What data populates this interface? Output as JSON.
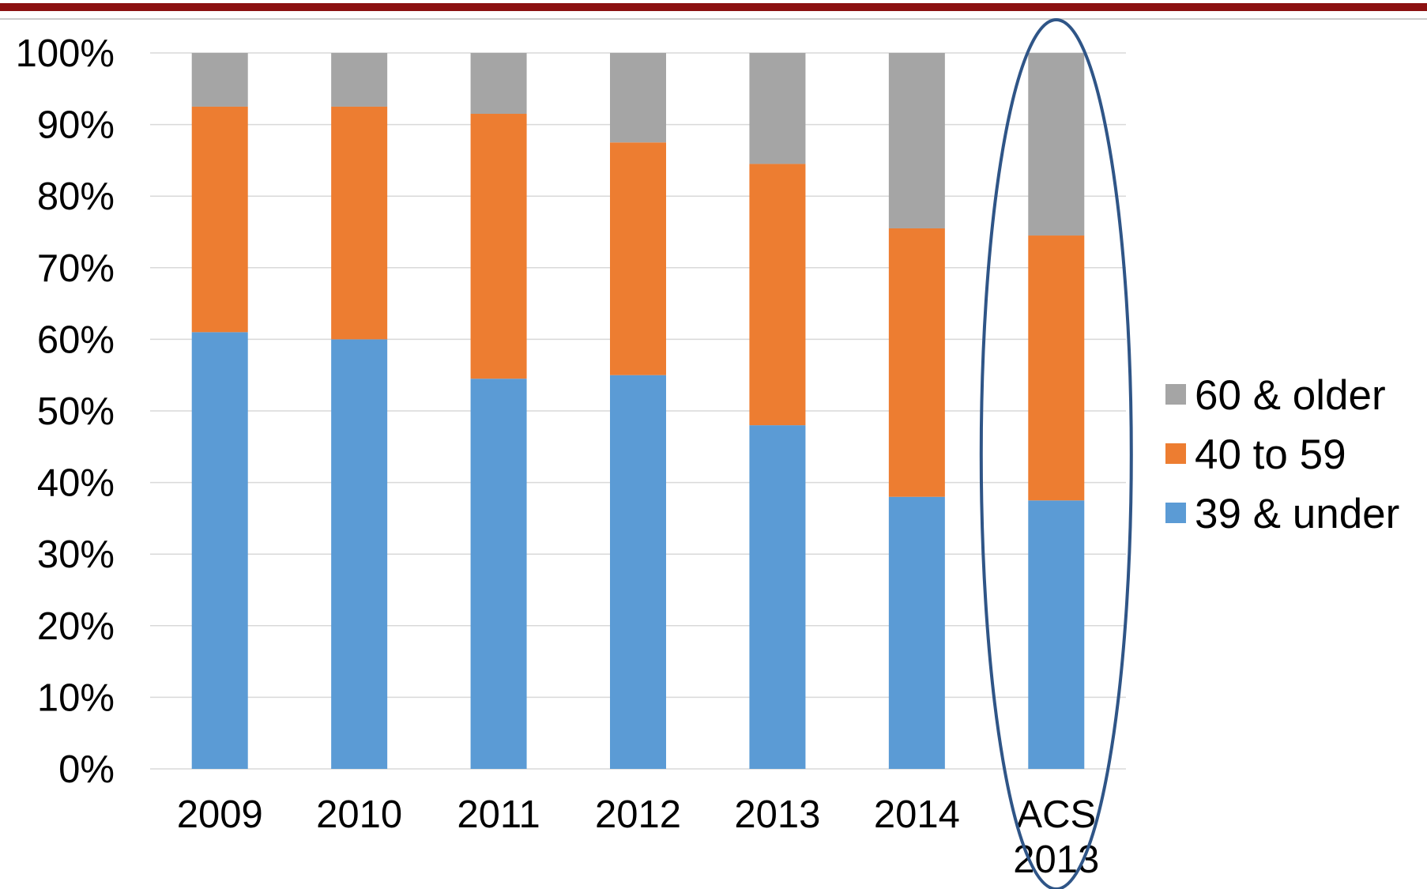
{
  "chart_data": {
    "type": "bar",
    "stacked": true,
    "percent_stacked": true,
    "categories": [
      "2009",
      "2010",
      "2011",
      "2012",
      "2013",
      "2014",
      "ACS 2013"
    ],
    "series": [
      {
        "name": "39 & under",
        "color": "#5B9BD5",
        "values": [
          61,
          60,
          54.5,
          55,
          48,
          38,
          37.5
        ]
      },
      {
        "name": "40 to 59",
        "color": "#ED7D31",
        "values": [
          31.5,
          32.5,
          37,
          32.5,
          36.5,
          37.5,
          37
        ]
      },
      {
        "name": "60 & older",
        "color": "#A5A5A5",
        "values": [
          7.5,
          7.5,
          8.5,
          12.5,
          15.5,
          24.5,
          25.5
        ]
      }
    ],
    "y_ticks": [
      "0%",
      "10%",
      "20%",
      "30%",
      "40%",
      "50%",
      "60%",
      "70%",
      "80%",
      "90%",
      "100%"
    ],
    "ylim": [
      0,
      100
    ],
    "grid": true,
    "legend_position": "right",
    "legend_order": [
      "60 & older",
      "40 to 59",
      "39 & under"
    ],
    "highlight": {
      "category": "ACS 2013",
      "shape": "ellipse",
      "color": "#2F5587"
    },
    "title": "",
    "xlabel": "",
    "ylabel": ""
  },
  "colors": {
    "header_rule": "#8B1111",
    "gridline": "#D9D9D9"
  }
}
